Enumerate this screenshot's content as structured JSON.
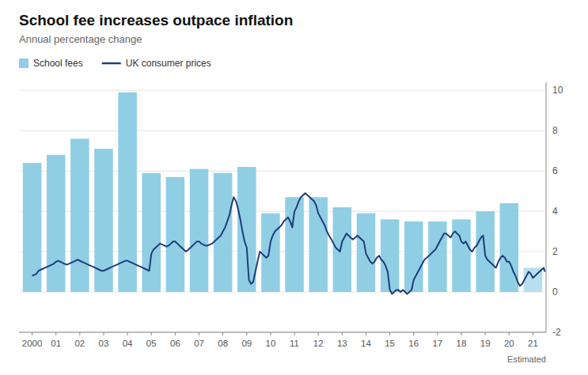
{
  "chart_data": {
    "type": "bar",
    "title": "School fee increases outpace inflation",
    "subtitle": "Annual percentage change",
    "annotations": [
      "Estimated"
    ],
    "xlim": [
      1999.45,
      2021.55
    ],
    "xticks": [
      2000,
      {
        "value": 2001,
        "label": "01"
      },
      {
        "value": 2002,
        "label": "02"
      },
      {
        "value": 2003,
        "label": "03"
      },
      {
        "value": 2004,
        "label": "04"
      },
      {
        "value": 2005,
        "label": "05"
      },
      {
        "value": 2006,
        "label": "06"
      },
      {
        "value": 2007,
        "label": "07"
      },
      {
        "value": 2008,
        "label": "08"
      },
      {
        "value": 2009,
        "label": "09"
      },
      {
        "value": 2010,
        "label": "10"
      },
      {
        "value": 2011,
        "label": "11"
      },
      {
        "value": 2012,
        "label": "12"
      },
      {
        "value": 2013,
        "label": "13"
      },
      {
        "value": 2014,
        "label": "14"
      },
      {
        "value": 2015,
        "label": "15"
      },
      {
        "value": 2016,
        "label": "16"
      },
      {
        "value": 2017,
        "label": "17"
      },
      {
        "value": 2018,
        "label": "18"
      },
      {
        "value": 2019,
        "label": "19"
      },
      {
        "value": 2020,
        "label": "20"
      },
      {
        "value": 2021,
        "label": "21"
      }
    ],
    "ylim": [
      -2,
      10.4
    ],
    "yticks": [
      -2,
      0,
      2,
      4,
      6,
      8,
      10
    ],
    "grid": true,
    "legend": "top",
    "series": [
      {
        "name": "School fees",
        "type": "bar",
        "color": "#90CEE4",
        "colors": [
          "#90CEE4",
          "#90CEE4",
          "#90CEE4",
          "#90CEE4",
          "#90CEE4",
          "#90CEE4",
          "#90CEE4",
          "#90CEE4",
          "#90CEE4",
          "#90CEE4",
          "#90CEE4",
          "#90CEE4",
          "#90CEE4",
          "#90CEE4",
          "#90CEE4",
          "#90CEE4",
          "#90CEE4",
          "#90CEE4",
          "#90CEE4",
          "#90CEE4",
          "#90CEE4",
          "#b8dff0"
        ],
        "x": [
          2000,
          2001,
          2002,
          2003,
          2004,
          2005,
          2006,
          2007,
          2008,
          2009,
          2010,
          2011,
          2012,
          2013,
          2014,
          2015,
          2016,
          2017,
          2018,
          2019,
          2020,
          2021
        ],
        "values": [
          6.4,
          6.8,
          7.6,
          7.1,
          9.9,
          5.9,
          5.7,
          6.1,
          5.9,
          6.2,
          3.9,
          4.7,
          4.7,
          4.2,
          3.9,
          3.6,
          3.5,
          3.5,
          3.6,
          4.0,
          4.4,
          1.2
        ]
      },
      {
        "name": "UK consumer prices",
        "type": "line",
        "color": "#1f3d7a",
        "x": [
          2000.0,
          2000.09,
          2000.18,
          2000.27,
          2000.36,
          2000.45,
          2000.55,
          2000.64,
          2000.73,
          2000.82,
          2000.91,
          2001.0,
          2001.09,
          2001.18,
          2001.27,
          2001.36,
          2001.45,
          2001.55,
          2001.64,
          2001.73,
          2001.82,
          2001.91,
          2002.0,
          2002.09,
          2002.18,
          2002.27,
          2002.36,
          2002.45,
          2002.55,
          2002.64,
          2002.73,
          2002.82,
          2002.91,
          2003.0,
          2003.09,
          2003.18,
          2003.27,
          2003.36,
          2003.45,
          2003.55,
          2003.64,
          2003.73,
          2003.82,
          2003.91,
          2004.0,
          2004.09,
          2004.18,
          2004.27,
          2004.36,
          2004.45,
          2004.55,
          2004.64,
          2004.73,
          2004.82,
          2004.91,
          2005.0,
          2005.09,
          2005.18,
          2005.27,
          2005.36,
          2005.45,
          2005.55,
          2005.64,
          2005.73,
          2005.82,
          2005.91,
          2006.0,
          2006.09,
          2006.18,
          2006.27,
          2006.36,
          2006.45,
          2006.55,
          2006.64,
          2006.73,
          2006.82,
          2006.91,
          2007.0,
          2007.09,
          2007.18,
          2007.27,
          2007.36,
          2007.45,
          2007.55,
          2007.64,
          2007.73,
          2007.82,
          2007.91,
          2008.0,
          2008.09,
          2008.18,
          2008.27,
          2008.36,
          2008.45,
          2008.55,
          2008.64,
          2008.73,
          2008.82,
          2008.91,
          2009.0,
          2009.09,
          2009.18,
          2009.27,
          2009.36,
          2009.45,
          2009.55,
          2009.64,
          2009.73,
          2009.82,
          2009.91,
          2010.0,
          2010.09,
          2010.18,
          2010.27,
          2010.36,
          2010.45,
          2010.55,
          2010.64,
          2010.73,
          2010.82,
          2010.91,
          2011.0,
          2011.09,
          2011.18,
          2011.27,
          2011.36,
          2011.45,
          2011.55,
          2011.64,
          2011.73,
          2011.82,
          2011.91,
          2012.0,
          2012.09,
          2012.18,
          2012.27,
          2012.36,
          2012.45,
          2012.55,
          2012.64,
          2012.73,
          2012.82,
          2012.91,
          2013.0,
          2013.09,
          2013.18,
          2013.27,
          2013.36,
          2013.45,
          2013.55,
          2013.64,
          2013.73,
          2013.82,
          2013.91,
          2014.0,
          2014.09,
          2014.18,
          2014.27,
          2014.36,
          2014.45,
          2014.55,
          2014.64,
          2014.73,
          2014.82,
          2014.91,
          2015.0,
          2015.09,
          2015.18,
          2015.27,
          2015.36,
          2015.45,
          2015.55,
          2015.64,
          2015.73,
          2015.82,
          2015.91,
          2016.0,
          2016.09,
          2016.18,
          2016.27,
          2016.36,
          2016.45,
          2016.55,
          2016.64,
          2016.73,
          2016.82,
          2016.91,
          2017.0,
          2017.09,
          2017.18,
          2017.27,
          2017.36,
          2017.45,
          2017.55,
          2017.64,
          2017.73,
          2017.82,
          2017.91,
          2018.0,
          2018.09,
          2018.18,
          2018.27,
          2018.36,
          2018.45,
          2018.55,
          2018.64,
          2018.73,
          2018.82,
          2018.91,
          2019.0,
          2019.09,
          2019.18,
          2019.27,
          2019.36,
          2019.45,
          2019.55,
          2019.64,
          2019.73,
          2019.82,
          2019.91,
          2020.0,
          2020.09,
          2020.18,
          2020.27,
          2020.36,
          2020.45,
          2020.55,
          2020.64,
          2020.73,
          2020.82,
          2020.91,
          2021.0,
          2021.09,
          2021.18,
          2021.27,
          2021.36,
          2021.45,
          2021.5
        ],
        "values": [
          0.8,
          0.85,
          0.9,
          1.05,
          1.1,
          1.15,
          1.2,
          1.25,
          1.3,
          1.35,
          1.4,
          1.5,
          1.55,
          1.5,
          1.45,
          1.4,
          1.35,
          1.4,
          1.45,
          1.5,
          1.55,
          1.6,
          1.55,
          1.5,
          1.45,
          1.4,
          1.35,
          1.3,
          1.25,
          1.2,
          1.15,
          1.1,
          1.05,
          1.05,
          1.1,
          1.15,
          1.2,
          1.25,
          1.3,
          1.35,
          1.4,
          1.45,
          1.5,
          1.55,
          1.55,
          1.5,
          1.45,
          1.4,
          1.35,
          1.3,
          1.25,
          1.2,
          1.15,
          1.1,
          1.05,
          1.9,
          2.1,
          2.2,
          2.3,
          2.4,
          2.35,
          2.3,
          2.25,
          2.3,
          2.4,
          2.5,
          2.5,
          2.4,
          2.3,
          2.2,
          2.1,
          2.0,
          2.1,
          2.2,
          2.3,
          2.4,
          2.5,
          2.5,
          2.4,
          2.35,
          2.3,
          2.3,
          2.35,
          2.4,
          2.5,
          2.6,
          2.7,
          2.8,
          3.0,
          3.2,
          3.5,
          3.8,
          4.3,
          4.7,
          4.5,
          4.1,
          3.6,
          3.0,
          2.5,
          2.2,
          0.6,
          0.4,
          0.5,
          1.0,
          1.5,
          2.0,
          1.9,
          1.8,
          1.7,
          1.8,
          2.5,
          2.8,
          3.0,
          3.1,
          3.2,
          3.3,
          3.5,
          3.6,
          3.7,
          3.5,
          3.2,
          4.0,
          4.2,
          4.5,
          4.7,
          4.8,
          4.9,
          4.8,
          4.7,
          4.6,
          4.5,
          4.3,
          3.9,
          3.7,
          3.5,
          3.3,
          3.0,
          2.8,
          2.6,
          2.4,
          2.2,
          2.1,
          2.0,
          2.5,
          2.7,
          2.9,
          2.8,
          2.7,
          2.6,
          2.7,
          2.8,
          2.7,
          2.6,
          2.5,
          1.9,
          1.7,
          1.5,
          1.4,
          1.5,
          1.7,
          1.8,
          1.6,
          1.5,
          1.3,
          1.0,
          0.1,
          -0.1,
          0.0,
          0.1,
          0.1,
          0.0,
          0.1,
          0.0,
          -0.1,
          0.0,
          0.1,
          0.6,
          0.8,
          1.0,
          1.2,
          1.4,
          1.6,
          1.7,
          1.8,
          1.9,
          2.0,
          2.1,
          2.3,
          2.5,
          2.7,
          2.9,
          2.9,
          2.8,
          2.7,
          2.9,
          3.0,
          2.9,
          2.8,
          2.5,
          2.4,
          2.5,
          2.3,
          2.1,
          2.0,
          2.2,
          2.3,
          2.5,
          2.7,
          2.8,
          1.8,
          1.6,
          1.5,
          1.4,
          1.3,
          1.2,
          1.5,
          1.7,
          1.8,
          1.7,
          1.5,
          1.5,
          1.3,
          1.0,
          0.8,
          0.5,
          0.3,
          0.4,
          0.6,
          0.8,
          1.0,
          0.9,
          0.7,
          0.8,
          0.9,
          1.0,
          1.1,
          1.2,
          1.0
        ]
      }
    ]
  }
}
